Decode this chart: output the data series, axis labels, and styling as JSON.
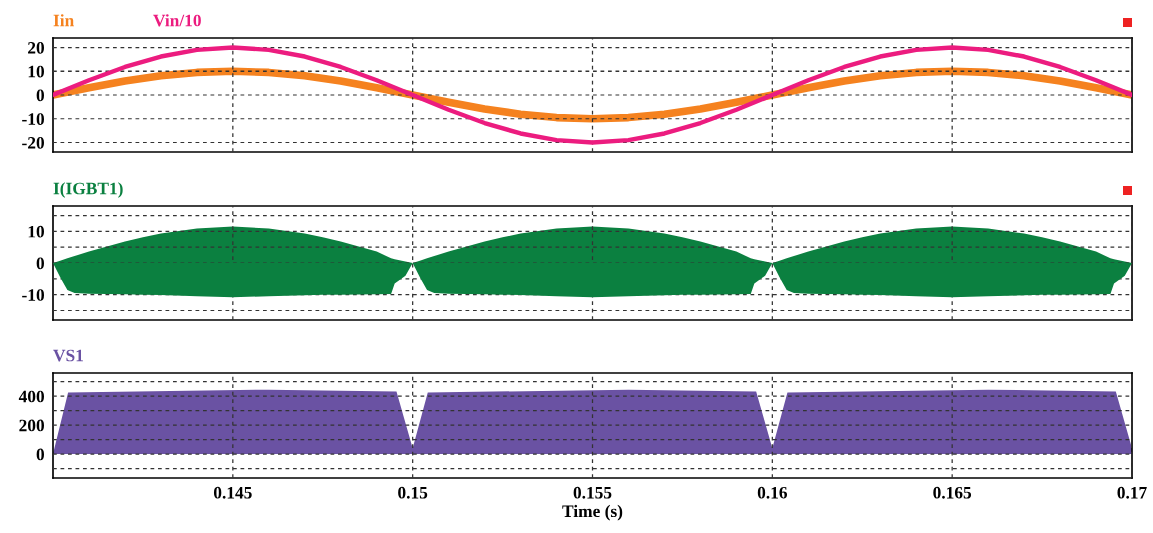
{
  "chart_data": [
    {
      "type": "line",
      "legend": "top left",
      "grid": true,
      "tick_labels": "y",
      "xlim": [
        0.14,
        0.17
      ],
      "xticks": [
        0.145,
        0.15,
        0.155,
        0.16,
        0.165,
        0.17
      ],
      "ylim": [
        -24,
        24
      ],
      "yticks": [
        -20,
        -10,
        0,
        10,
        20
      ],
      "x": [
        0.14,
        0.141,
        0.142,
        0.143,
        0.144,
        0.145,
        0.146,
        0.147,
        0.148,
        0.149,
        0.15,
        0.151,
        0.152,
        0.153,
        0.154,
        0.155,
        0.156,
        0.157,
        0.158,
        0.159,
        0.16,
        0.161,
        0.162,
        0.163,
        0.164,
        0.165,
        0.166,
        0.167,
        0.168,
        0.169,
        0.17
      ],
      "series": [
        {
          "name": "Iin",
          "color": "#f5821f",
          "values": [
            0,
            3.1,
            5.9,
            8.1,
            9.5,
            10,
            9.5,
            8.1,
            5.9,
            3.1,
            0,
            -3.1,
            -5.9,
            -8.1,
            -9.5,
            -10,
            -9.5,
            -8.1,
            -5.9,
            -3.1,
            0,
            3.1,
            5.9,
            8.1,
            9.5,
            10,
            9.5,
            8.1,
            5.9,
            3.1,
            0
          ]
        },
        {
          "name": "Vin/10",
          "color": "#ec1c7f",
          "values": [
            0,
            6.2,
            11.8,
            16.2,
            19,
            20,
            19,
            16.2,
            11.8,
            6.2,
            0,
            -6.2,
            -11.8,
            -16.2,
            -19,
            -20,
            -19,
            -16.2,
            -11.8,
            -6.2,
            0,
            6.2,
            11.8,
            16.2,
            19,
            20,
            19,
            16.2,
            11.8,
            6.2,
            0
          ]
        }
      ]
    },
    {
      "type": "area",
      "legend": "top left",
      "grid": true,
      "tick_labels": "y",
      "xlim": [
        0.14,
        0.17
      ],
      "xticks": [
        0.145,
        0.15,
        0.155,
        0.16,
        0.165,
        0.17
      ],
      "ylim": [
        -18,
        18
      ],
      "yticks": [
        {
          "value": -15,
          "label": null
        },
        -10,
        {
          "value": -5,
          "label": null
        },
        0,
        {
          "value": 5,
          "label": null
        },
        10,
        {
          "value": 15,
          "label": null
        }
      ],
      "x": [
        0.14,
        0.1402,
        0.1404,
        0.1406,
        0.141,
        0.142,
        0.1425,
        0.143,
        0.144,
        0.145,
        0.146,
        0.147,
        0.1475,
        0.148,
        0.149,
        0.1494,
        0.1495,
        0.1498,
        0.15,
        0.1502,
        0.1504,
        0.1506,
        0.151,
        0.152,
        0.1525,
        0.153,
        0.154,
        0.155,
        0.156,
        0.157,
        0.1575,
        0.158,
        0.159,
        0.1594,
        0.1595,
        0.1598,
        0.16,
        0.1602,
        0.1604,
        0.1606,
        0.161,
        0.162,
        0.1625,
        0.163,
        0.164,
        0.165,
        0.166,
        0.167,
        0.1675,
        0.168,
        0.169,
        0.1694,
        0.1695,
        0.1698,
        0.17
      ],
      "series": [
        {
          "name": "I(IGBT1)",
          "color": "#0b8040",
          "values": [
            0,
            0.7,
            1.5,
            2.2,
            3.6,
            6.8,
            8.1,
            9.3,
            10.9,
            11.5,
            10.9,
            9.3,
            8.1,
            6.8,
            3.6,
            1.5,
            1.2,
            0.5,
            0,
            0.7,
            1.5,
            2.2,
            3.6,
            6.8,
            8.1,
            9.3,
            10.9,
            11.5,
            10.9,
            9.3,
            8.1,
            6.8,
            3.6,
            1.5,
            1.2,
            0.5,
            0,
            0.7,
            1.5,
            2.2,
            3.6,
            6.8,
            8.1,
            9.3,
            10.9,
            11.5,
            10.9,
            9.3,
            8.1,
            6.8,
            3.6,
            1.5,
            1.2,
            0.5,
            0
          ]
        },
        {
          "color": "#0b8040",
          "values": [
            0,
            -4.5,
            -8.5,
            -9.5,
            -9.7,
            -9.9,
            -10,
            -10.1,
            -10.5,
            -10.8,
            -10.5,
            -10.2,
            -10,
            -10,
            -9.9,
            -9.8,
            -6.5,
            -4,
            0,
            -4.5,
            -8.5,
            -9.5,
            -9.7,
            -9.9,
            -10,
            -10.1,
            -10.5,
            -10.8,
            -10.5,
            -10.2,
            -10,
            -10,
            -9.9,
            -9.8,
            -6.5,
            -4,
            0,
            -4.5,
            -8.5,
            -9.5,
            -9.7,
            -9.9,
            -10,
            -10.1,
            -10.5,
            -10.8,
            -10.5,
            -10.2,
            -10,
            -10,
            -9.9,
            -9.8,
            -6.5,
            -4,
            0
          ]
        }
      ]
    },
    {
      "type": "area",
      "legend": "top left",
      "grid": true,
      "xlabel": "Time (s)",
      "xlim": [
        0.14,
        0.17
      ],
      "xticks": [
        0.145,
        0.15,
        0.155,
        0.16,
        0.165,
        0.17
      ],
      "ylim": [
        -165,
        560
      ],
      "yticks": [
        {
          "value": -100,
          "label": null
        },
        0,
        {
          "value": 100,
          "label": null
        },
        200,
        {
          "value": 300,
          "label": null
        },
        400,
        {
          "value": 500,
          "label": null
        }
      ],
      "x": [
        0.14,
        0.14042,
        0.146,
        0.14955,
        0.15,
        0.15042,
        0.156,
        0.15955,
        0.16,
        0.16042,
        0.166,
        0.16955,
        0.17
      ],
      "series": [
        {
          "name": "VS1",
          "color": "#6a52a3",
          "values": [
            0,
            425,
            445,
            432,
            40,
            425,
            445,
            432,
            40,
            425,
            445,
            432,
            40
          ]
        }
      ]
    }
  ]
}
